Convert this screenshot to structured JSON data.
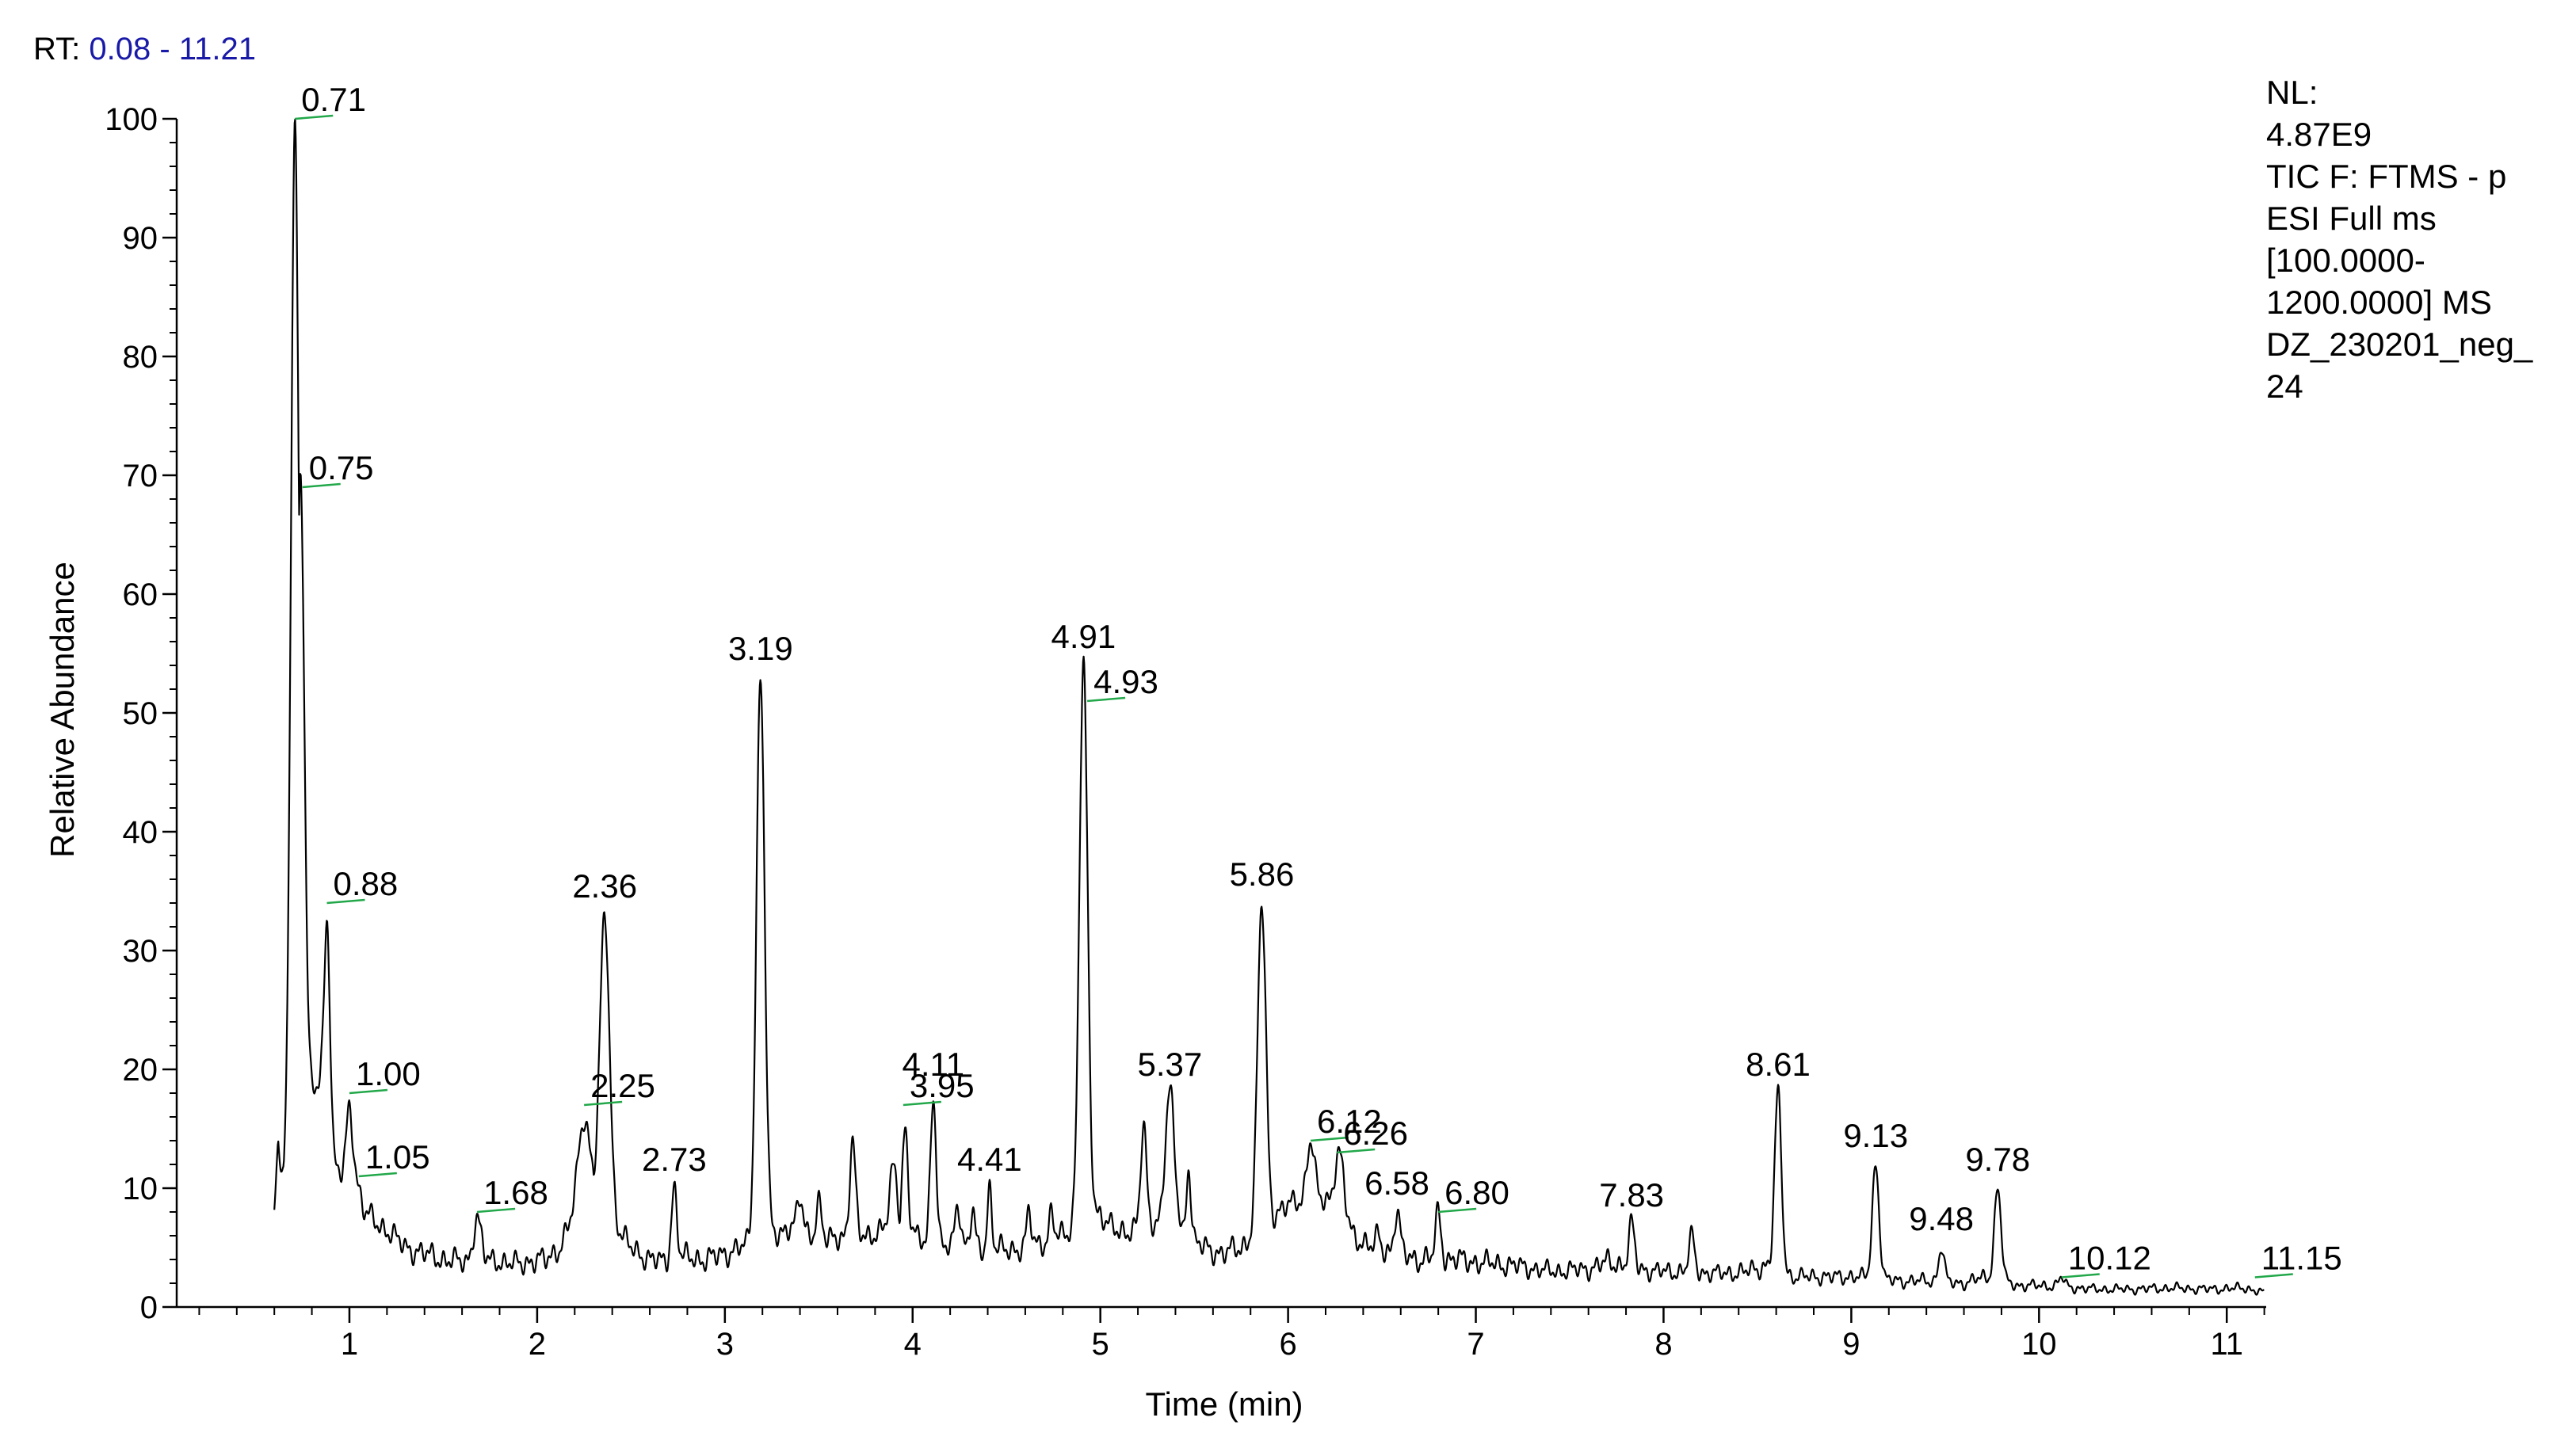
{
  "header": {
    "rt_prefix": "RT:",
    "rt_range": "0.08 - 11.21"
  },
  "info": {
    "lines": [
      "NL:",
      "4.87E9",
      "TIC F: FTMS - p",
      "ESI Full ms",
      "[100.0000-",
      "1200.0000]  MS",
      "DZ_230201_neg_",
      "24"
    ]
  },
  "colors": {
    "trace": "#000000",
    "peak_marker": "#22a84a",
    "rt_range": "#1a1aa8"
  },
  "chart_data": {
    "type": "line",
    "xlabel": "Time (min)",
    "ylabel": "Relative Abundance",
    "xlim": [
      0.08,
      11.21
    ],
    "ylim": [
      0,
      100
    ],
    "x_ticks": [
      1,
      2,
      3,
      4,
      5,
      6,
      7,
      8,
      9,
      10,
      11
    ],
    "y_ticks": [
      0,
      10,
      20,
      30,
      40,
      50,
      60,
      70,
      80,
      90,
      100
    ],
    "peak_labels": [
      {
        "label": "0.71",
        "rt": 0.71,
        "y": 100,
        "marker": true
      },
      {
        "label": "0.75",
        "rt": 0.75,
        "y": 69,
        "marker": true
      },
      {
        "label": "0.88",
        "rt": 0.88,
        "y": 34,
        "marker": true
      },
      {
        "label": "1.00",
        "rt": 1.0,
        "y": 18,
        "marker": true
      },
      {
        "label": "1.05",
        "rt": 1.05,
        "y": 11,
        "marker": true
      },
      {
        "label": "1.68",
        "rt": 1.68,
        "y": 8,
        "marker": true
      },
      {
        "label": "2.25",
        "rt": 2.25,
        "y": 17,
        "marker": true
      },
      {
        "label": "2.36",
        "rt": 2.36,
        "y": 33,
        "marker": false
      },
      {
        "label": "2.73",
        "rt": 2.73,
        "y": 10,
        "marker": false
      },
      {
        "label": "3.19",
        "rt": 3.19,
        "y": 53,
        "marker": false
      },
      {
        "label": "3.95",
        "rt": 3.95,
        "y": 17,
        "marker": true
      },
      {
        "label": "4.11",
        "rt": 4.11,
        "y": 18,
        "marker": false
      },
      {
        "label": "4.41",
        "rt": 4.41,
        "y": 10,
        "marker": false
      },
      {
        "label": "4.91",
        "rt": 4.91,
        "y": 54,
        "marker": false
      },
      {
        "label": "4.93",
        "rt": 4.93,
        "y": 51,
        "marker": true
      },
      {
        "label": "5.37",
        "rt": 5.37,
        "y": 18,
        "marker": false
      },
      {
        "label": "5.86",
        "rt": 5.86,
        "y": 34,
        "marker": false
      },
      {
        "label": "6.12",
        "rt": 6.12,
        "y": 14,
        "marker": true
      },
      {
        "label": "6.26",
        "rt": 6.26,
        "y": 13,
        "marker": true
      },
      {
        "label": "6.58",
        "rt": 6.58,
        "y": 8,
        "marker": false
      },
      {
        "label": "6.80",
        "rt": 6.8,
        "y": 8,
        "marker": true
      },
      {
        "label": "7.83",
        "rt": 7.83,
        "y": 7,
        "marker": false
      },
      {
        "label": "8.61",
        "rt": 8.61,
        "y": 18,
        "marker": false
      },
      {
        "label": "9.13",
        "rt": 9.13,
        "y": 12,
        "marker": false
      },
      {
        "label": "9.48",
        "rt": 9.48,
        "y": 5,
        "marker": false
      },
      {
        "label": "9.78",
        "rt": 9.78,
        "y": 10,
        "marker": false
      },
      {
        "label": "10.12",
        "rt": 10.12,
        "y": 2.5,
        "marker": true
      },
      {
        "label": "11.15",
        "rt": 11.15,
        "y": 2.5,
        "marker": true
      }
    ],
    "series": [
      {
        "baseline": [
          [
            0.6,
            8
          ],
          [
            0.62,
            14
          ],
          [
            0.65,
            10
          ],
          [
            0.7,
            22
          ],
          [
            0.8,
            18
          ],
          [
            0.85,
            19
          ],
          [
            0.92,
            12
          ],
          [
            0.96,
            11
          ],
          [
            1.02,
            12
          ],
          [
            1.08,
            8
          ],
          [
            1.15,
            7
          ],
          [
            1.2,
            6.5
          ],
          [
            1.3,
            5
          ],
          [
            1.4,
            4.5
          ],
          [
            1.5,
            4
          ],
          [
            1.6,
            3.8
          ],
          [
            1.75,
            4
          ],
          [
            1.85,
            3.6
          ],
          [
            1.95,
            3.8
          ],
          [
            2.05,
            4
          ],
          [
            2.12,
            5
          ],
          [
            2.18,
            7
          ],
          [
            2.3,
            10
          ],
          [
            2.45,
            6
          ],
          [
            2.5,
            5
          ],
          [
            2.6,
            4
          ],
          [
            2.68,
            3.8
          ],
          [
            2.8,
            4.2
          ],
          [
            2.9,
            4
          ],
          [
            3.0,
            4.5
          ],
          [
            3.08,
            5
          ],
          [
            3.28,
            6
          ],
          [
            3.35,
            7
          ],
          [
            3.45,
            6
          ],
          [
            3.55,
            5.5
          ],
          [
            3.62,
            6
          ],
          [
            3.75,
            6
          ],
          [
            3.85,
            6.5
          ],
          [
            4.0,
            6
          ],
          [
            4.15,
            5
          ],
          [
            4.3,
            5
          ],
          [
            4.5,
            4.8
          ],
          [
            4.6,
            5
          ],
          [
            4.7,
            5.5
          ],
          [
            4.8,
            6
          ],
          [
            5.0,
            8
          ],
          [
            5.1,
            6
          ],
          [
            5.2,
            7
          ],
          [
            5.3,
            7
          ],
          [
            5.45,
            6
          ],
          [
            5.55,
            5
          ],
          [
            5.65,
            4.5
          ],
          [
            5.75,
            5
          ],
          [
            5.95,
            8
          ],
          [
            6.05,
            9
          ],
          [
            6.2,
            9
          ],
          [
            6.35,
            6
          ],
          [
            6.45,
            5
          ],
          [
            6.6,
            4.5
          ],
          [
            6.7,
            4
          ],
          [
            6.9,
            4
          ],
          [
            7.0,
            3.8
          ],
          [
            7.2,
            3.5
          ],
          [
            7.4,
            3
          ],
          [
            7.6,
            3.2
          ],
          [
            7.7,
            3.8
          ],
          [
            7.95,
            3
          ],
          [
            8.1,
            3
          ],
          [
            8.3,
            2.8
          ],
          [
            8.45,
            3
          ],
          [
            8.55,
            3.5
          ],
          [
            8.7,
            2.5
          ],
          [
            8.8,
            2.6
          ],
          [
            8.9,
            2.5
          ],
          [
            9.0,
            2.6
          ],
          [
            9.25,
            2.2
          ],
          [
            9.4,
            2.2
          ],
          [
            9.6,
            2
          ],
          [
            9.7,
            2.5
          ],
          [
            9.9,
            1.8
          ],
          [
            10.05,
            1.8
          ],
          [
            10.3,
            1.5
          ],
          [
            10.5,
            1.5
          ],
          [
            10.7,
            1.6
          ],
          [
            10.9,
            1.5
          ],
          [
            11.1,
            1.6
          ],
          [
            11.2,
            1.2
          ]
        ],
        "peaks": [
          [
            0.71,
            100,
            0.02
          ],
          [
            0.74,
            70,
            0.02
          ],
          [
            0.88,
            33,
            0.015
          ],
          [
            1.0,
            17,
            0.015
          ],
          [
            1.68,
            7.5,
            0.02
          ],
          [
            1.78,
            4,
            0.015
          ],
          [
            2.25,
            16,
            0.03
          ],
          [
            2.36,
            33,
            0.025
          ],
          [
            2.73,
            10,
            0.015
          ],
          [
            3.19,
            53,
            0.022
          ],
          [
            3.4,
            9,
            0.015
          ],
          [
            3.5,
            9,
            0.015
          ],
          [
            3.68,
            14,
            0.015
          ],
          [
            3.9,
            12,
            0.02
          ],
          [
            3.96,
            15,
            0.015
          ],
          [
            4.11,
            18,
            0.015
          ],
          [
            4.24,
            9,
            0.015
          ],
          [
            4.32,
            8,
            0.012
          ],
          [
            4.41,
            10,
            0.012
          ],
          [
            4.62,
            8,
            0.012
          ],
          [
            4.74,
            8,
            0.012
          ],
          [
            4.91,
            54,
            0.022
          ],
          [
            5.23,
            15,
            0.015
          ],
          [
            5.37,
            18,
            0.025
          ],
          [
            5.47,
            12,
            0.012
          ],
          [
            5.86,
            34,
            0.022
          ],
          [
            6.12,
            14,
            0.02
          ],
          [
            6.27,
            13,
            0.025
          ],
          [
            6.48,
            6,
            0.012
          ],
          [
            6.58,
            8,
            0.015
          ],
          [
            6.8,
            8,
            0.015
          ],
          [
            7.83,
            7,
            0.015
          ],
          [
            8.15,
            6,
            0.015
          ],
          [
            8.61,
            18,
            0.018
          ],
          [
            9.13,
            12,
            0.018
          ],
          [
            9.48,
            5,
            0.015
          ],
          [
            9.78,
            10,
            0.018
          ],
          [
            10.12,
            2.5,
            0.015
          ]
        ]
      }
    ]
  }
}
